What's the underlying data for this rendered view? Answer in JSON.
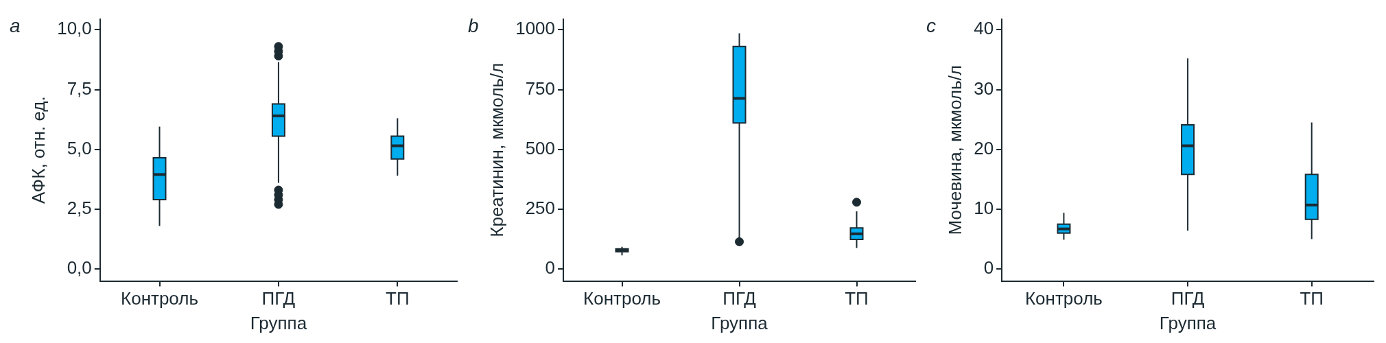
{
  "chart_data": [
    {
      "type": "box",
      "title": "a",
      "xlabel": "Группа",
      "ylabel": "АФК, отн. ед.",
      "categories": [
        "Контроль",
        "ПГД",
        "ТП"
      ],
      "color": "#00aeef",
      "boxes": [
        {
          "low": 1.8,
          "q1": 2.9,
          "median": 3.95,
          "q3": 4.65,
          "high": 5.95
        },
        {
          "low": 3.6,
          "q1": 5.55,
          "median": 6.4,
          "q3": 6.9,
          "high": 8.65,
          "outliers": [
            2.7,
            2.9,
            3.1,
            3.3,
            8.9,
            9.1,
            9.3
          ]
        },
        {
          "low": 3.9,
          "q1": 4.6,
          "median": 5.15,
          "q3": 5.55,
          "high": 6.3
        }
      ],
      "ylim": [
        -0.5,
        10.45
      ],
      "yticks": [
        {
          "value": 0,
          "label": "0,0"
        },
        {
          "value": 2.5,
          "label": "2,5"
        },
        {
          "value": 5,
          "label": "5,0"
        },
        {
          "value": 7.5,
          "label": "7,5"
        },
        {
          "value": 10,
          "label": "10,0"
        }
      ]
    },
    {
      "type": "box",
      "title": "b",
      "xlabel": "Группа",
      "ylabel": "Креатинин, мкмоль/л",
      "categories": [
        "Контроль",
        "ПГД",
        "ТП"
      ],
      "color": "#00aeef",
      "boxes": [
        {
          "low": 57,
          "q1": 72,
          "median": 78,
          "q3": 84,
          "high": 93
        },
        {
          "low": 130,
          "q1": 610,
          "median": 713,
          "q3": 930,
          "high": 985,
          "outliers": [
            114
          ]
        },
        {
          "low": 88,
          "q1": 124,
          "median": 147,
          "q3": 172,
          "high": 241,
          "outliers": [
            279
          ]
        }
      ],
      "ylim": [
        -50,
        1045
      ],
      "yticks": [
        0,
        250,
        500,
        750,
        1000
      ]
    },
    {
      "type": "box",
      "title": "c",
      "xlabel": "Группа",
      "ylabel": "Мочевина, мкмоль/л",
      "categories": [
        "Контроль",
        "ПГД",
        "ТП"
      ],
      "color": "#00aeef",
      "boxes": [
        {
          "low": 4.9,
          "q1": 6.0,
          "median": 6.7,
          "q3": 7.5,
          "high": 9.4
        },
        {
          "low": 6.4,
          "q1": 15.8,
          "median": 20.6,
          "q3": 24.1,
          "high": 35.2
        },
        {
          "low": 5.0,
          "q1": 8.3,
          "median": 10.7,
          "q3": 15.8,
          "high": 24.5
        }
      ],
      "ylim": [
        -2,
        41.8
      ],
      "yticks": [
        0,
        10,
        20,
        30,
        40
      ]
    }
  ]
}
